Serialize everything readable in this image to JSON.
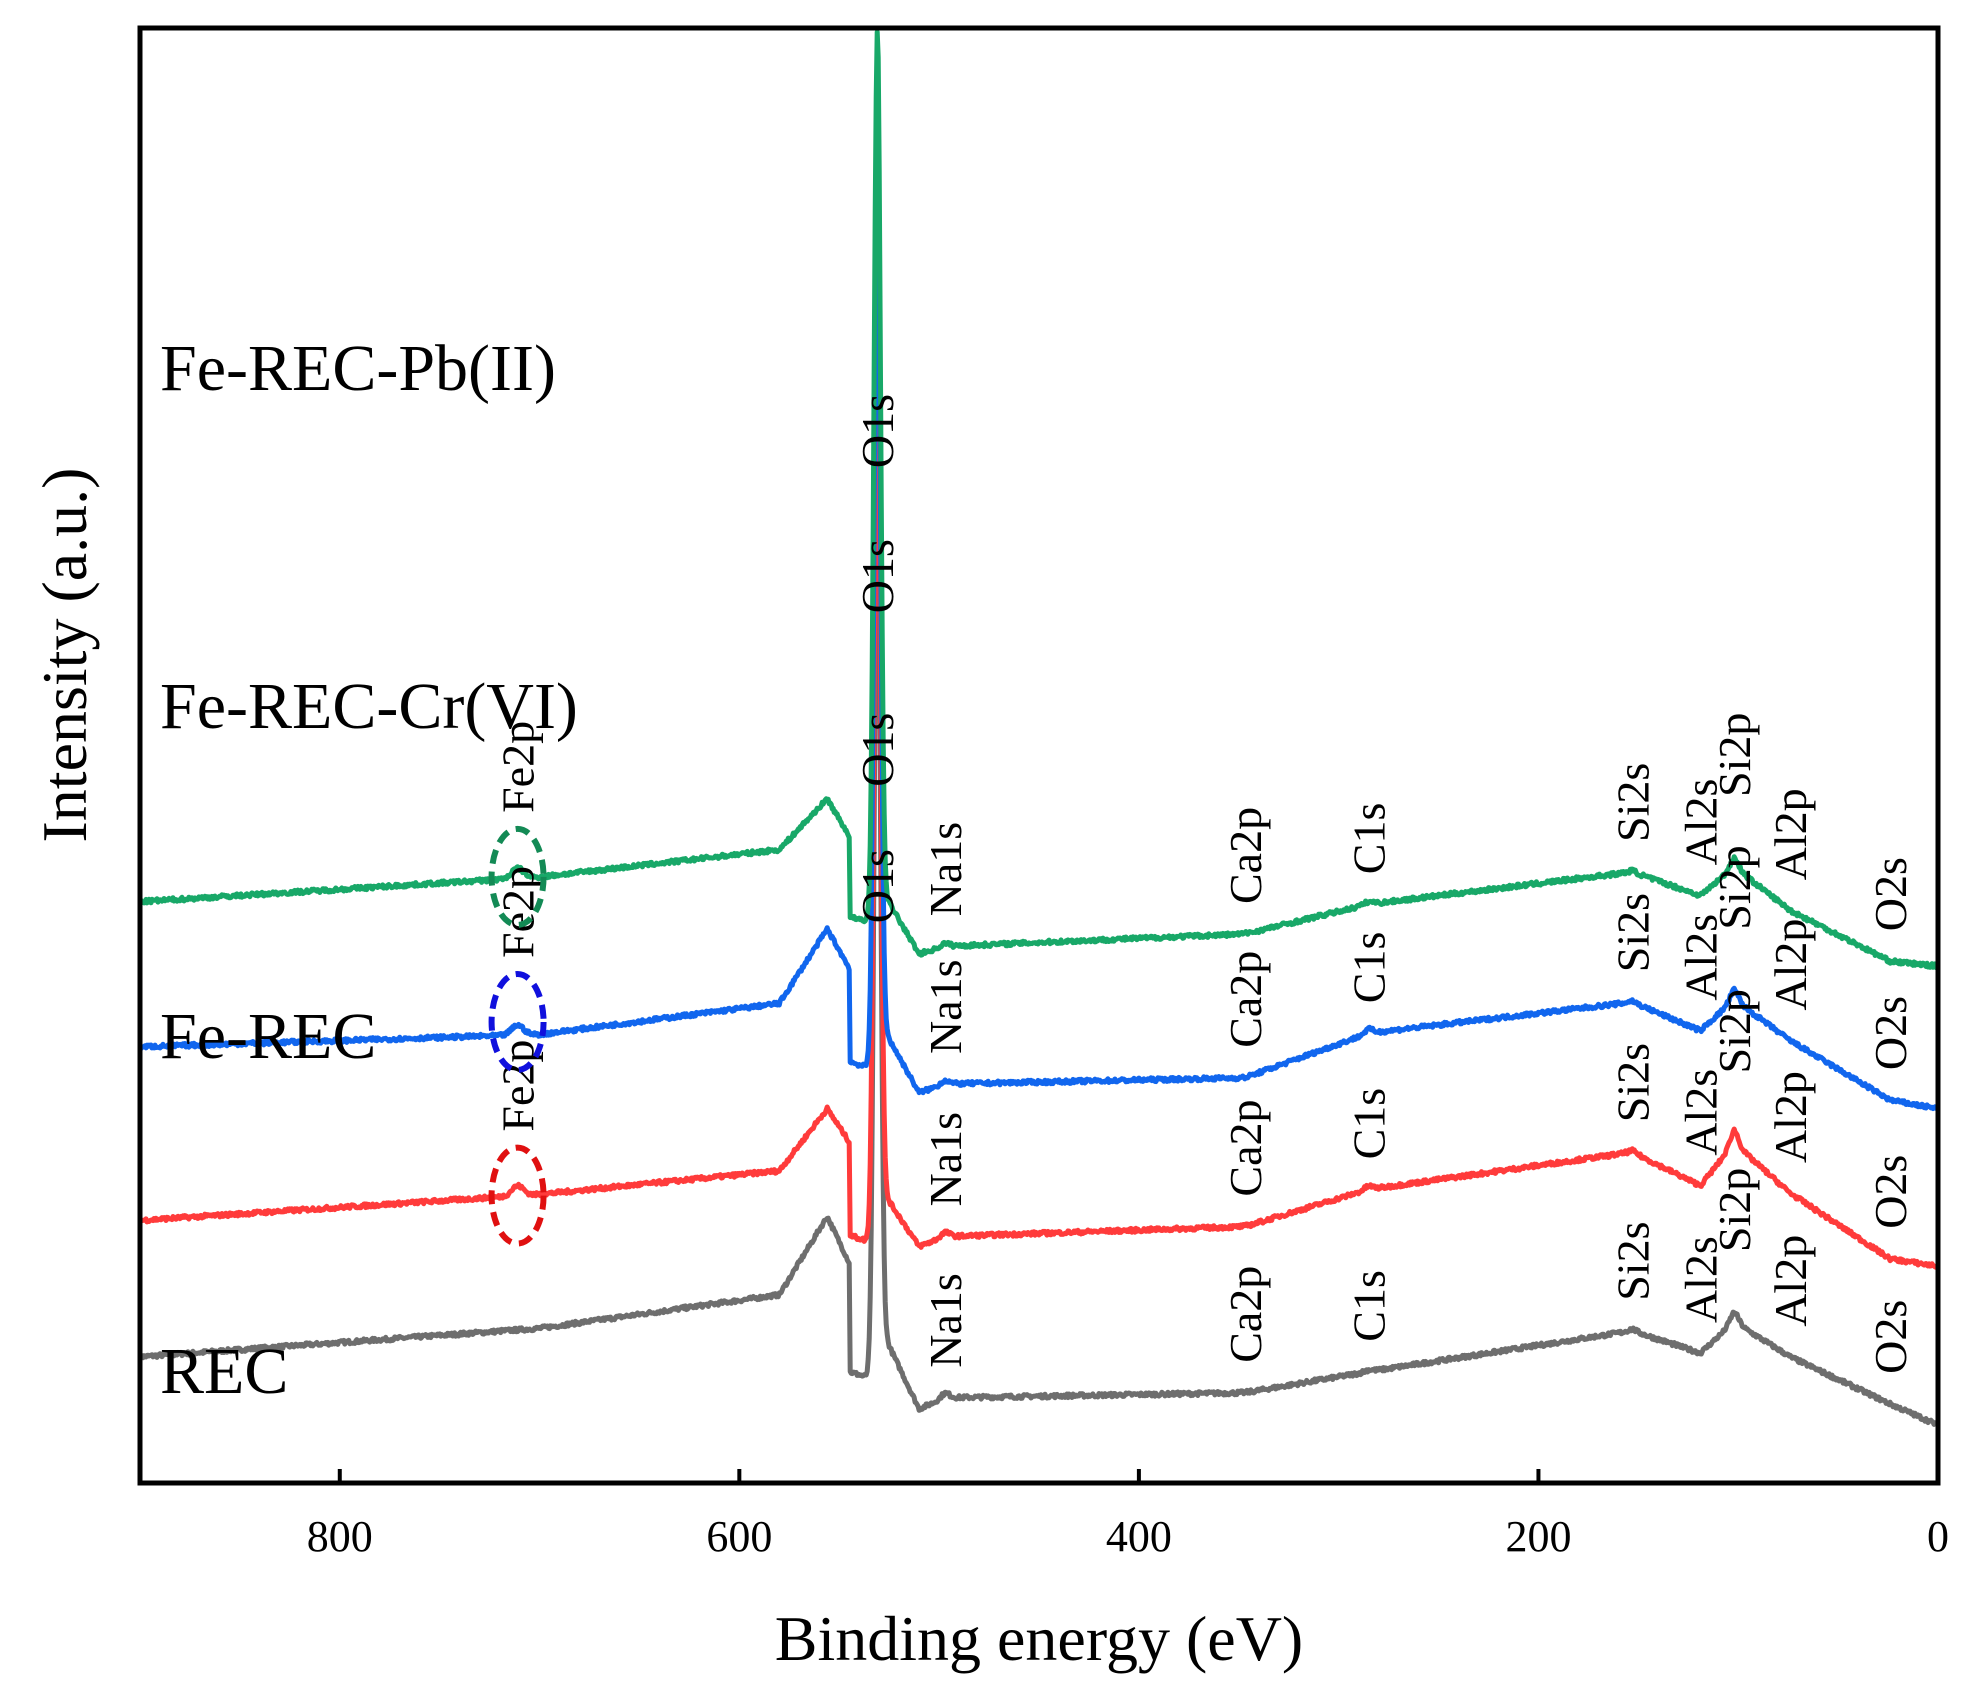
{
  "chart_data": {
    "type": "line",
    "title": "",
    "xlabel": "Binding energy (eV)",
    "ylabel": "Intensity (a.u.)",
    "xlim": [
      900,
      0
    ],
    "x_reversed": true,
    "xticks": [
      800,
      600,
      400,
      200,
      0
    ],
    "yticks": [],
    "grid": false,
    "legend": "none",
    "peaks": [
      {
        "label": "O1s",
        "x": 531
      },
      {
        "label": "Na1s",
        "x": 497
      },
      {
        "label": "Ca2p",
        "x": 347
      },
      {
        "label": "C1s",
        "x": 285
      },
      {
        "label": "Si2s",
        "x": 153
      },
      {
        "label": "Al2s",
        "x": 119
      },
      {
        "label": "Si2p",
        "x": 102
      },
      {
        "label": "Al2p",
        "x": 74
      },
      {
        "label": "O2s",
        "x": 24
      }
    ],
    "series": [
      {
        "name": "REC",
        "color": "#6e6e6e",
        "baseline": 55,
        "fe2p": false,
        "values_by_eV": [
          [
            900,
            55
          ],
          [
            700,
            78
          ],
          [
            580,
            105
          ],
          [
            556,
            168
          ],
          [
            531,
            900
          ],
          [
            510,
            13
          ],
          [
            497,
            22
          ],
          [
            347,
            26
          ],
          [
            285,
            43
          ],
          [
            153,
            76
          ],
          [
            119,
            58
          ],
          [
            102,
            83
          ],
          [
            74,
            55
          ],
          [
            24,
            17
          ],
          [
            0,
            0
          ]
        ]
      },
      {
        "name": "Fe-REC",
        "color": "#ff3b3b",
        "baseline": 165,
        "fe2p": true,
        "fe2p_color": "#e01010",
        "values_by_eV": [
          [
            900,
            165
          ],
          [
            700,
            186
          ],
          [
            580,
            205
          ],
          [
            556,
            255
          ],
          [
            531,
            900
          ],
          [
            510,
            144
          ],
          [
            497,
            152
          ],
          [
            347,
            160
          ],
          [
            285,
            190
          ],
          [
            153,
            220
          ],
          [
            119,
            193
          ],
          [
            102,
            227
          ],
          [
            74,
            187
          ],
          [
            24,
            134
          ],
          [
            0,
            128
          ]
        ]
      },
      {
        "name": "Fe-REC-Cr(VI)",
        "color": "#1166ee",
        "baseline": 305,
        "fe2p": true,
        "fe2p_color": "#1010dd",
        "values_by_eV": [
          [
            900,
            305
          ],
          [
            700,
            315
          ],
          [
            580,
            340
          ],
          [
            556,
            400
          ],
          [
            531,
            900
          ],
          [
            510,
            268
          ],
          [
            497,
            275
          ],
          [
            347,
            280
          ],
          [
            285,
            316
          ],
          [
            153,
            341
          ],
          [
            119,
            318
          ],
          [
            102,
            343
          ],
          [
            74,
            310
          ],
          [
            24,
            262
          ],
          [
            0,
            255
          ]
        ]
      },
      {
        "name": "Fe-REC-Pb(II)",
        "color": "#18a868",
        "baseline": 422,
        "fe2p": true,
        "fe2p_color": "#138a55",
        "values_by_eV": [
          [
            900,
            422
          ],
          [
            700,
            442
          ],
          [
            580,
            464
          ],
          [
            556,
            505
          ],
          [
            531,
            900
          ],
          [
            510,
            380
          ],
          [
            497,
            386
          ],
          [
            347,
            396
          ],
          [
            285,
            420
          ],
          [
            153,
            446
          ],
          [
            119,
            427
          ],
          [
            102,
            450
          ],
          [
            74,
            415
          ],
          [
            24,
            374
          ],
          [
            0,
            370
          ]
        ]
      }
    ],
    "annotations": [
      {
        "text": "Fe2p",
        "series": "Fe-REC-Pb(II)"
      },
      {
        "text": "Fe2p",
        "series": "Fe-REC-Cr(VI)"
      },
      {
        "text": "Fe2p",
        "series": "Fe-REC"
      }
    ]
  }
}
